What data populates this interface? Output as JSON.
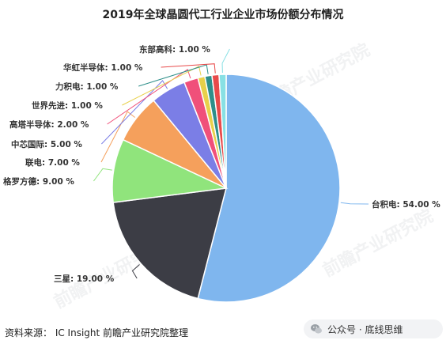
{
  "chart_data": {
    "type": "pie",
    "title": "2019年全球晶圆代工行业企业市场份额分布情况",
    "slices": [
      {
        "name": "台积电",
        "value": 54.0,
        "label": "台积电: 54.00 %",
        "color": "#7fb6ee"
      },
      {
        "name": "三星",
        "value": 19.0,
        "label": "三星: 19.00 %",
        "color": "#3c3d45"
      },
      {
        "name": "格罗方德",
        "value": 9.0,
        "label": "格罗方德: 9.00 %",
        "color": "#90e47c"
      },
      {
        "name": "联电",
        "value": 7.0,
        "label": "联电: 7.00 %",
        "color": "#f5a05c"
      },
      {
        "name": "中芯国际",
        "value": 5.0,
        "label": "中芯国际: 5.00 %",
        "color": "#7b7ee6"
      },
      {
        "name": "高塔半导体",
        "value": 2.0,
        "label": "高塔半导体: 2.00 %",
        "color": "#f0507a"
      },
      {
        "name": "世界先进",
        "value": 1.0,
        "label": "世界先进: 1.00 %",
        "color": "#e8d04a"
      },
      {
        "name": "力积电",
        "value": 1.0,
        "label": "力积电: 1.00 %",
        "color": "#2e8f8a"
      },
      {
        "name": "华虹半导体",
        "value": 1.0,
        "label": "华虹半导体: 1.00 %",
        "color": "#e84a4a"
      },
      {
        "name": "东部高科",
        "value": 1.0,
        "label": "东部高科: 1.00 %",
        "color": "#88e0e4"
      }
    ]
  },
  "source_note": "资料来源： IC Insight 前瞻产业研究院整理",
  "wechat_mark": {
    "text": "公众号 · 底线思维",
    "icon": "wechat-icon"
  },
  "watermark_text": "前瞻产业研究院"
}
